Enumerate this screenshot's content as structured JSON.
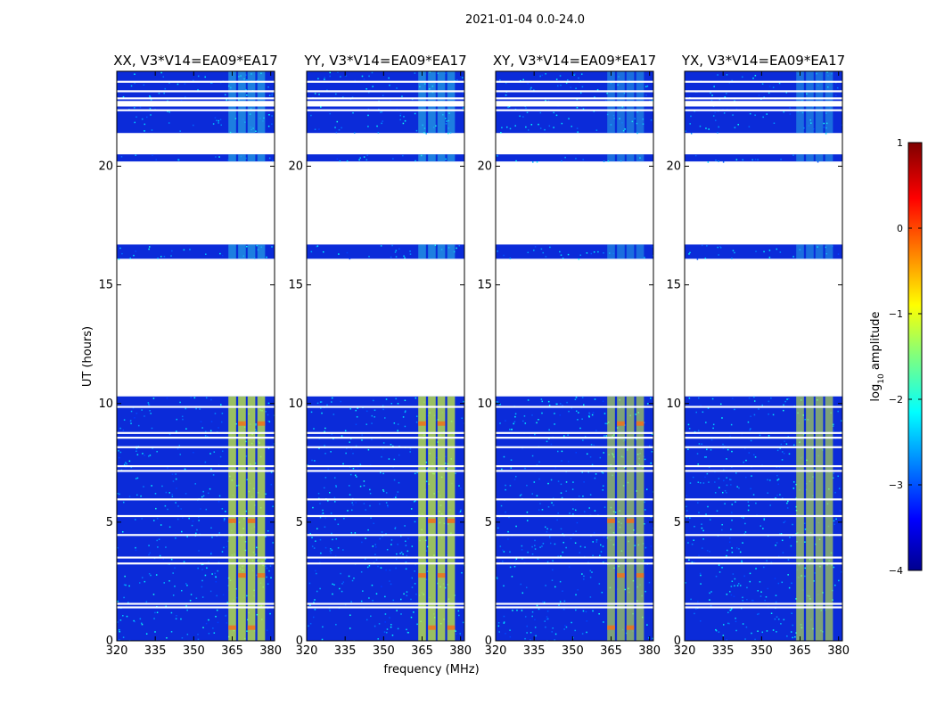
{
  "chart_data": {
    "type": "heatmap",
    "suptitle": "2021-01-04 0.0-24.0",
    "xlabel": "frequency (MHz)",
    "ylabel": "UT (hours)",
    "xlim": [
      320,
      381.5
    ],
    "ylim": [
      0,
      24
    ],
    "xticks": [
      "320",
      "335",
      "350",
      "365",
      "380"
    ],
    "yticks": [
      "0",
      "5",
      "10",
      "15",
      "20"
    ],
    "panels": [
      {
        "title": "XX, V3*V14=EA09*EA17"
      },
      {
        "title": "YY, V3*V14=EA09*EA17"
      },
      {
        "title": "XY, V3*V14=EA09*EA17"
      },
      {
        "title": "YX, V3*V14=EA09*EA17"
      }
    ],
    "colorbar": {
      "label": "log10 amplitude",
      "label_base": "log",
      "label_sub": "10",
      "label_rest": " amplitude",
      "range": [
        -4,
        1
      ],
      "ticks": [
        "1",
        "0",
        "−1",
        "−2",
        "−3",
        "−4"
      ],
      "colormap": "jet"
    },
    "data_coverage_hours": [
      [
        0.0,
        10.3
      ],
      [
        16.1,
        16.7
      ],
      [
        20.2,
        20.5
      ],
      [
        21.4,
        24.0
      ]
    ],
    "strong_signal_band_mhz": [
      361,
      378
    ],
    "colors": {
      "background_low": "#0b2bd9",
      "mid": "#2ec4e6",
      "high_band": "#c9f03a",
      "peak": "#f0701c"
    }
  }
}
